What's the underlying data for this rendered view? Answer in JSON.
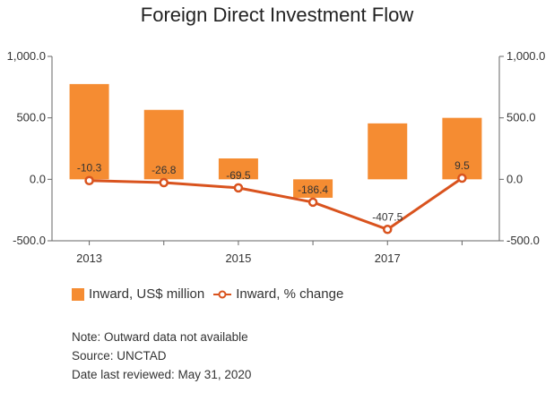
{
  "chart_data": {
    "type": "bar+line",
    "title": "Foreign Direct Investment Flow",
    "x_tick_labels": [
      "2013",
      "",
      "2015",
      "",
      "2017",
      ""
    ],
    "categories_count": 6,
    "series": [
      {
        "name": "Inward, US$ million",
        "type": "bar",
        "axis": "left",
        "color": "#F58C32",
        "values": [
          775,
          565,
          170,
          -150,
          455,
          500
        ]
      },
      {
        "name": "Inward, % change",
        "type": "line",
        "axis": "right",
        "color": "#D9531E",
        "values": [
          -10.3,
          -26.8,
          -69.5,
          -186.4,
          -407.5,
          9.5
        ],
        "labels": [
          "-10.3",
          "-26.8",
          "-69.5",
          "-186.4",
          "-407.5",
          "9.5"
        ]
      }
    ],
    "y_left": {
      "min": -500,
      "max": 1000,
      "ticks": [
        "1,000.0",
        "500.0",
        "0.0",
        "-500.0"
      ],
      "tick_values": [
        1000,
        500,
        0,
        -500
      ]
    },
    "y_right": {
      "min": -500,
      "max": 1000,
      "ticks": [
        "1,000.0",
        "500.0",
        "0.0",
        "-500.0"
      ],
      "tick_values": [
        1000,
        500,
        0,
        -500
      ]
    },
    "grid": false,
    "legend_position": "bottom-left"
  },
  "notes": {
    "note": "Note: Outward data not available",
    "source": "Source: UNCTAD",
    "reviewed": "Date last reviewed: May 31, 2020"
  }
}
